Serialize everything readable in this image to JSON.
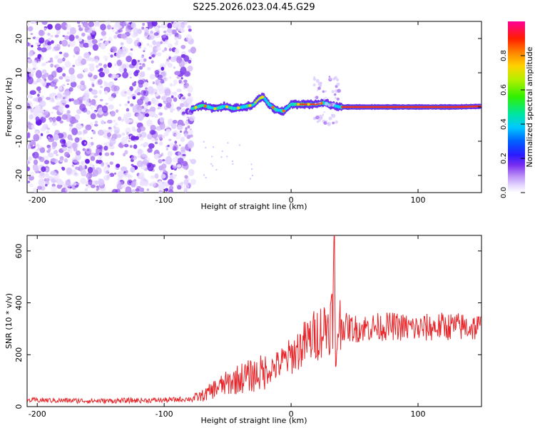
{
  "title": "S225.2026.023.04.45.G29",
  "chart_data": [
    {
      "type": "heatmap",
      "title": "S225.2026.023.04.45.G29",
      "xlabel": "Height of straight line (km)",
      "ylabel": "Frequency (Hz)",
      "xlim": [
        -208,
        150
      ],
      "ylim": [
        -25,
        25
      ],
      "xticks": [
        -200,
        -100,
        0,
        100
      ],
      "yticks": [
        -20,
        -10,
        0,
        10,
        20
      ],
      "colorbar": {
        "label": "Normalized spectral amplitude",
        "range": [
          0,
          1
        ],
        "ticks": [
          "0.0",
          "0.2",
          "0.4",
          "0.6",
          "0.8"
        ],
        "colors": [
          "#ffffff",
          "#d4bff5",
          "#8a3ff0",
          "#5a10e0",
          "#2a2cff",
          "#00c8ff",
          "#00e6a0",
          "#30f000",
          "#c8e600",
          "#ffb400",
          "#ff2a00",
          "#ff0090"
        ]
      },
      "ridge": {
        "description": "dominant spectral frequency vs height",
        "x": [
          -78,
          -70,
          -60,
          -52,
          -45,
          -38,
          -30,
          -25,
          -22,
          -18,
          -12,
          -6,
          0,
          10,
          20,
          25,
          30,
          38,
          50,
          70,
          100,
          130,
          150
        ],
        "y": [
          -0.5,
          0.5,
          -0.5,
          0.2,
          -0.5,
          0,
          0.6,
          2.5,
          3,
          1,
          -0.8,
          -1.2,
          0.8,
          0.8,
          0.8,
          1.2,
          0.8,
          0,
          0,
          0,
          0,
          0,
          0.2
        ]
      },
      "noise_region_km": [
        -208,
        -77
      ]
    },
    {
      "type": "line",
      "xlabel": "Height of straight line (km)",
      "ylabel": "SNR (10 * v/v)",
      "xlim": [
        -208,
        150
      ],
      "ylim": [
        0,
        660
      ],
      "xticks": [
        -200,
        -100,
        0,
        100
      ],
      "yticks": [
        0,
        200,
        400,
        600
      ],
      "series": [
        {
          "name": "SNR",
          "color": "#e8262a",
          "x": [
            -208,
            -150,
            -100,
            -78,
            -68,
            -60,
            -50,
            -40,
            -30,
            -20,
            -10,
            0,
            10,
            20,
            30,
            33,
            34,
            35,
            37,
            40,
            50,
            60,
            80,
            100,
            120,
            150
          ],
          "y": [
            25,
            22,
            25,
            30,
            45,
            70,
            90,
            110,
            120,
            135,
            160,
            195,
            240,
            280,
            320,
            360,
            650,
            120,
            330,
            310,
            300,
            305,
            310,
            300,
            310,
            305
          ]
        }
      ]
    }
  ]
}
